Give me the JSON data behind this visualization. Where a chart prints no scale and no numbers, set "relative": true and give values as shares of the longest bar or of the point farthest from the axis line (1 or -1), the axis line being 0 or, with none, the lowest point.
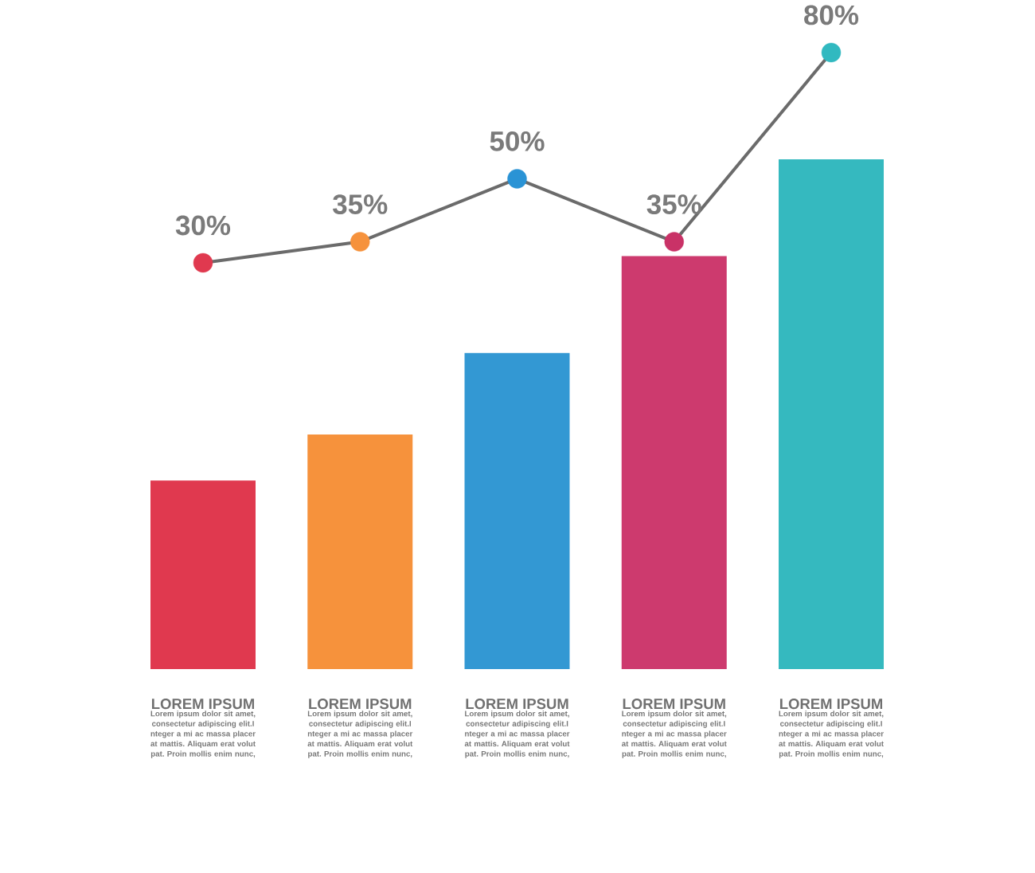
{
  "chart_data": [
    {
      "type": "bar",
      "relative": true,
      "categories": [
        "LOREM IPSUM",
        "LOREM IPSUM",
        "LOREM IPSUM",
        "LOREM IPSUM",
        "LOREM IPSUM"
      ],
      "values": [
        0.37,
        0.46,
        0.62,
        0.81,
        1
      ],
      "colors": [
        "#e0394f",
        "#f6923c",
        "#3398d3",
        "#cd3a6e",
        "#35b9bf"
      ],
      "tick_labels": "x",
      "annotations": [
        "Lorem ipsum dolor sit amet, consectetur adipiscing elit.I nteger a mi ac massa placer at mattis. Aliquam erat volut pat. Proin mollis enim nunc,",
        "Lorem ipsum dolor sit amet, consectetur adipiscing elit.I nteger a mi ac massa placer at mattis. Aliquam erat volut pat. Proin mollis enim nunc,",
        "Lorem ipsum dolor sit amet, consectetur adipiscing elit.I nteger a mi ac massa placer at mattis. Aliquam erat volut pat. Proin mollis enim nunc,",
        "Lorem ipsum dolor sit amet, consectetur adipiscing elit.I nteger a mi ac massa placer at mattis. Aliquam erat volut pat. Proin mollis enim nunc,",
        "Lorem ipsum dolor sit amet, consectetur adipiscing elit.I nteger a mi ac massa placer at mattis. Aliquam erat volut pat. Proin mollis enim nunc,"
      ]
    },
    {
      "type": "line",
      "categories": [
        null,
        null,
        null,
        null,
        null
      ],
      "values": [
        30,
        35,
        50,
        35,
        80
      ],
      "value_labels": [
        "30%",
        "35%",
        "50%",
        "35%",
        "80%"
      ],
      "color": "#6b6b6b",
      "colors": [
        "#e0394f",
        "#f6923c",
        "#2a93d5",
        "#c93267",
        "#31b9c0"
      ],
      "marker": "circle",
      "line_style": "solid",
      "tick_labels": false
    }
  ]
}
